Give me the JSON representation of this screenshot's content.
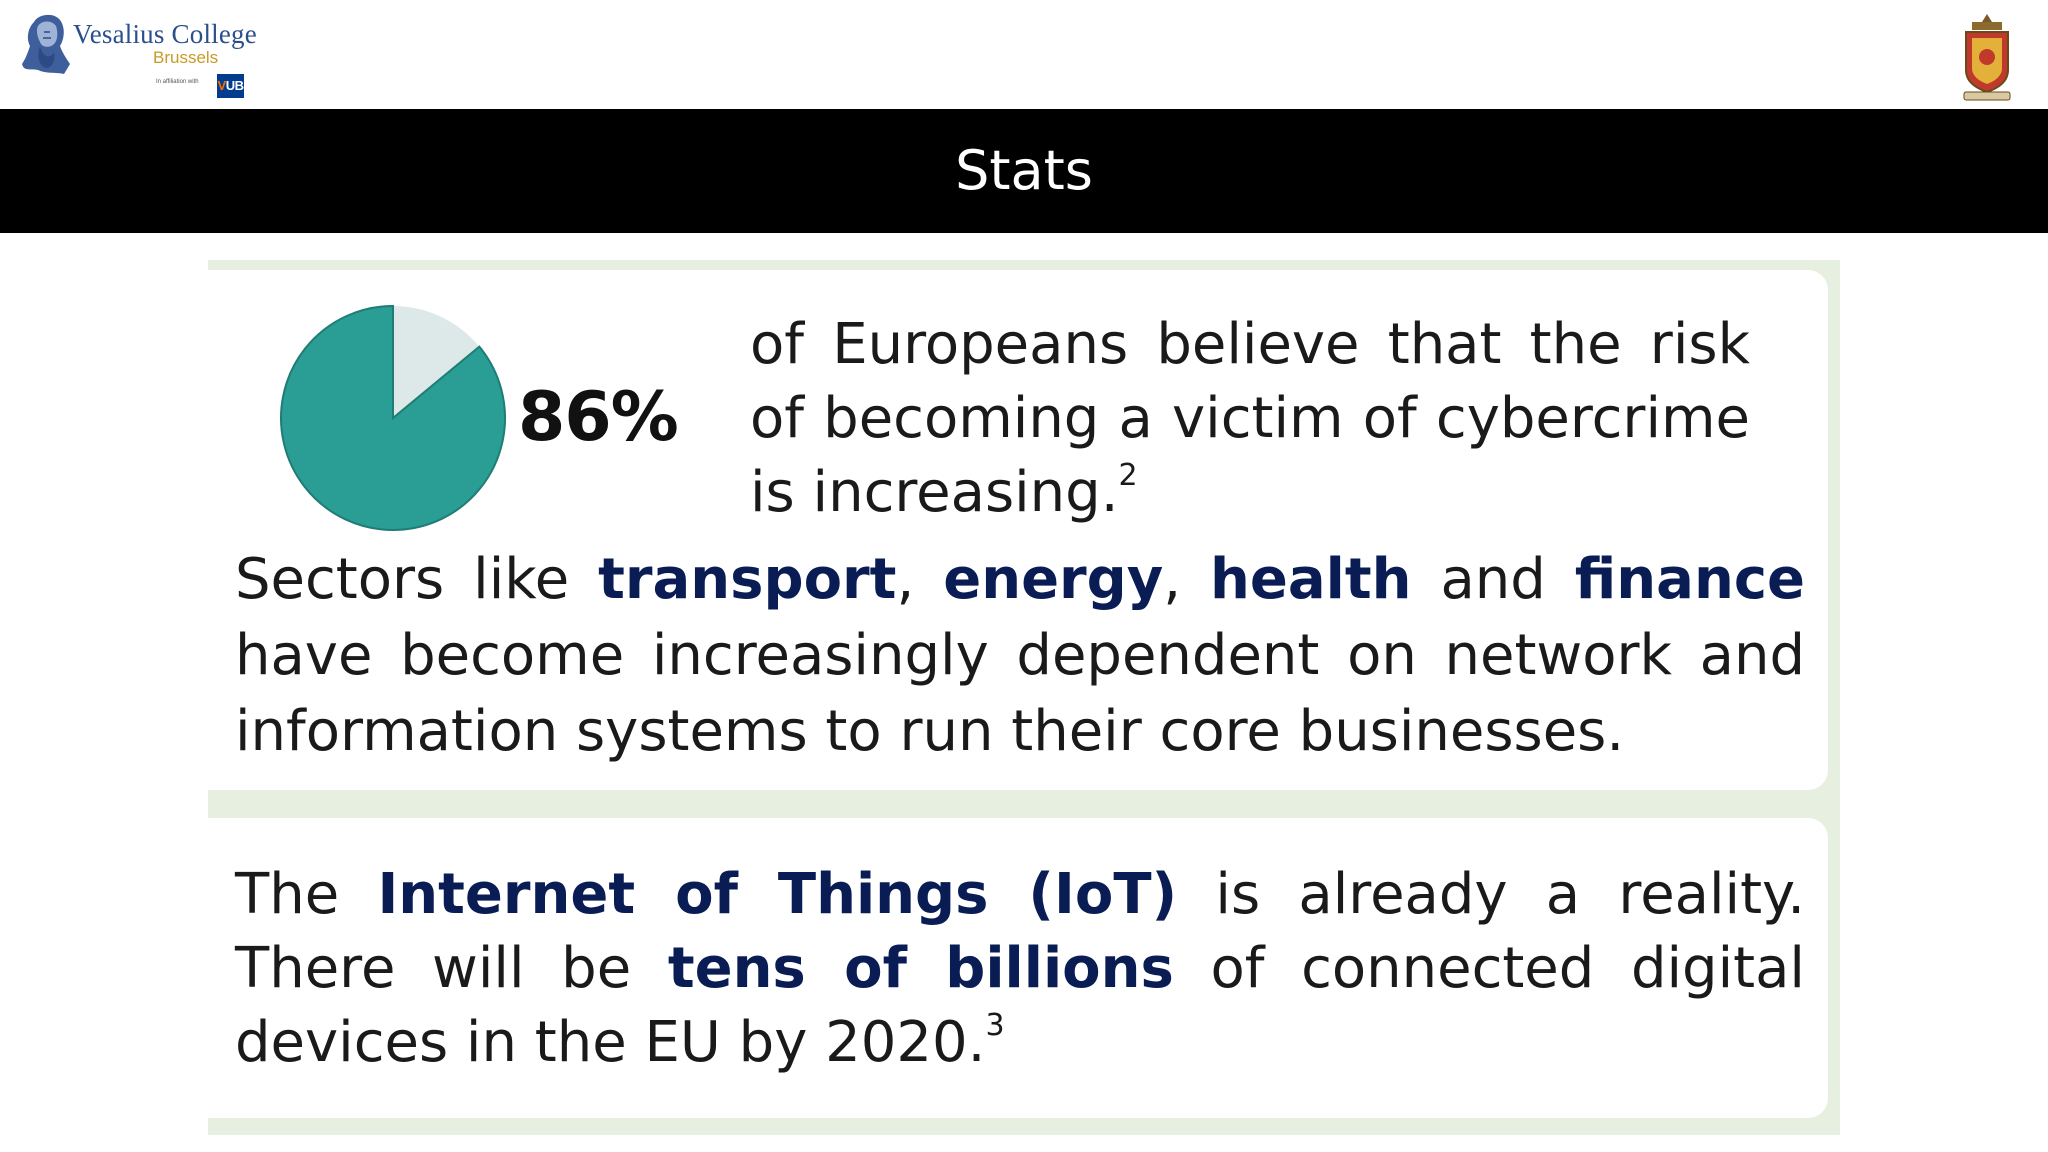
{
  "header": {
    "college_name": "Vesalius College",
    "college_city": "Brussels",
    "affiliation_text": "In affiliation with",
    "affiliation_badge_v": "V",
    "affiliation_badge_rest": "UB"
  },
  "title": "Stats",
  "stat": {
    "percent_label": "86%",
    "percent_value": 86,
    "text": "of Europeans believe that the risk of becoming a victim of cybercrime is increasing.",
    "footnote": "2"
  },
  "sectors": {
    "t1": "Sectors like ",
    "h1": "transport",
    "t2": ", ",
    "h2": "energy",
    "t3": ", ",
    "h3": "health",
    "t4": " and ",
    "h4": "finance",
    "t5": " have become increasingly dependent on network and information systems to run their core businesses."
  },
  "iot": {
    "t1": "The ",
    "h1": "Internet of Things (IoT)",
    "t2": " is already a reality. There will be ",
    "h2": "tens of billions",
    "t3": " of connected digital devices in the EU by 2020.",
    "footnote": "3"
  },
  "colors": {
    "title_band": "#000000",
    "pie_main": "#2a9d94",
    "pie_rest": "#dde9e9",
    "highlight": "#0a1c54",
    "panel_border": "#e6efe0"
  }
}
